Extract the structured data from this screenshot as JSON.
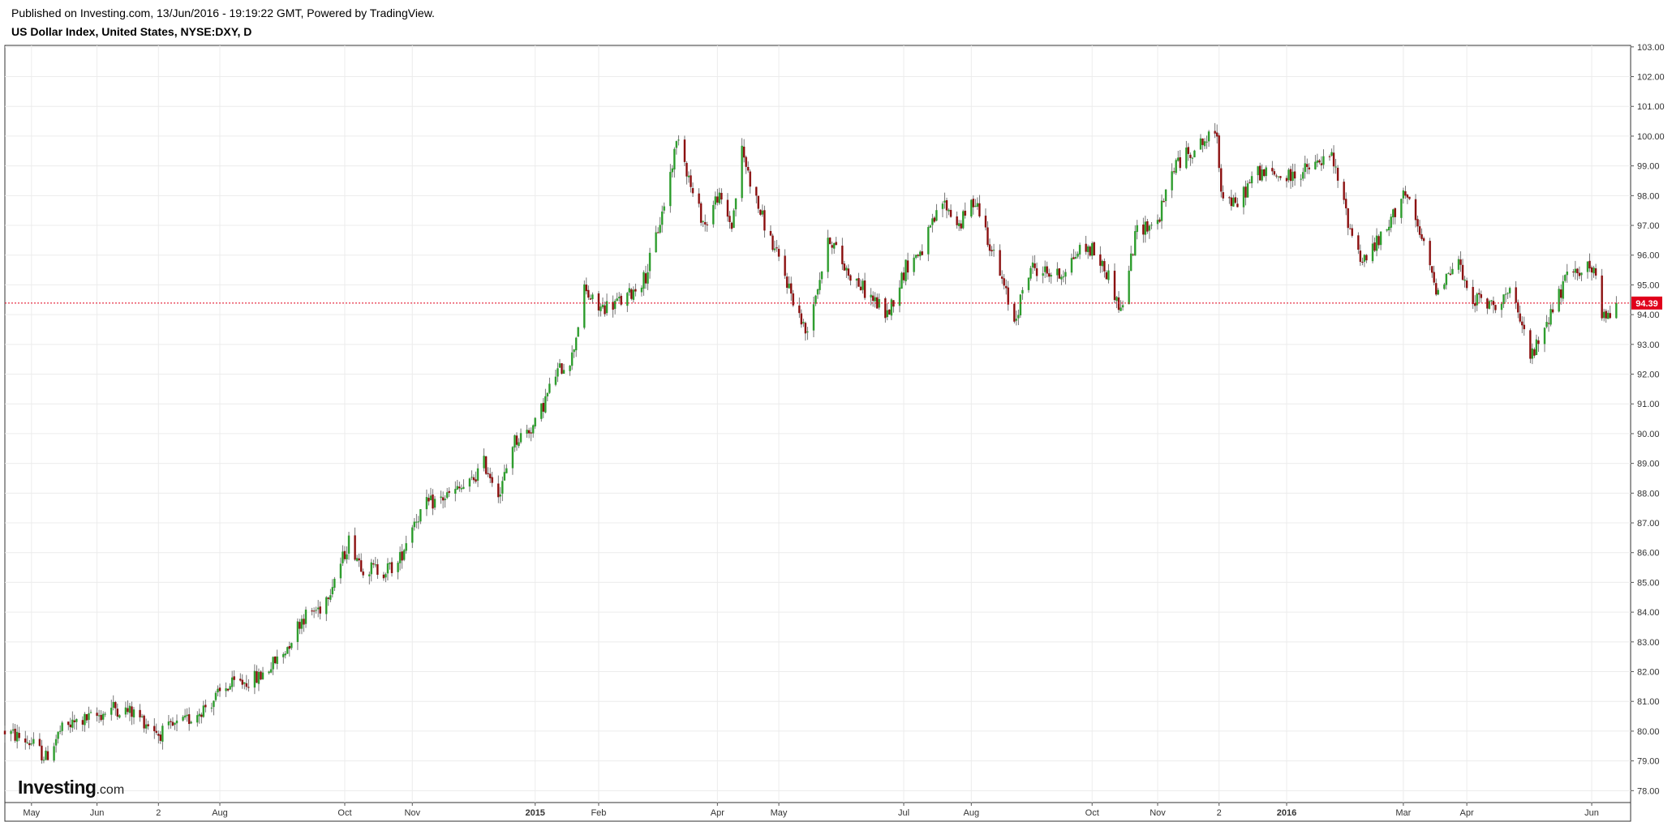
{
  "header": {
    "published": "Published on Investing.com, 13/Jun/2016 - 19:19:22 GMT, Powered by TradingView.",
    "title": "US Dollar Index, United States, NYSE:DXY, D"
  },
  "logo": {
    "brand": "Investing",
    "suffix": ".com"
  },
  "colors": {
    "up": "#2e9d2e",
    "down": "#8b1010",
    "last_price": "#e0001b",
    "grid": "#ececec"
  },
  "chart_data": {
    "type": "candlestick",
    "title": "US Dollar Index, United States, NYSE:DXY, D",
    "y_ticks": [
      "78.00",
      "79.00",
      "80.00",
      "81.00",
      "82.00",
      "83.00",
      "84.00",
      "85.00",
      "86.00",
      "87.00",
      "88.00",
      "89.00",
      "90.00",
      "91.00",
      "92.00",
      "93.00",
      "94.00",
      "95.00",
      "96.00",
      "97.00",
      "98.00",
      "99.00",
      "100.00",
      "101.00",
      "102.00",
      "103.00"
    ],
    "ylim": [
      77.6,
      103.05
    ],
    "x_ticks": [
      {
        "label": "May",
        "date": "2014-05-01",
        "bold": false
      },
      {
        "label": "Jun",
        "date": "2014-06-02",
        "bold": false
      },
      {
        "label": "2",
        "date": "2014-07-02",
        "bold": false
      },
      {
        "label": "Aug",
        "date": "2014-08-01",
        "bold": false
      },
      {
        "label": "Oct",
        "date": "2014-10-01",
        "bold": false
      },
      {
        "label": "Nov",
        "date": "2014-11-03",
        "bold": false
      },
      {
        "label": "2015",
        "date": "2015-01-02",
        "bold": true
      },
      {
        "label": "Feb",
        "date": "2015-02-02",
        "bold": false
      },
      {
        "label": "Apr",
        "date": "2015-04-01",
        "bold": false
      },
      {
        "label": "May",
        "date": "2015-05-01",
        "bold": false
      },
      {
        "label": "Jul",
        "date": "2015-07-01",
        "bold": false
      },
      {
        "label": "Aug",
        "date": "2015-08-03",
        "bold": false
      },
      {
        "label": "Oct",
        "date": "2015-10-01",
        "bold": false
      },
      {
        "label": "Nov",
        "date": "2015-11-02",
        "bold": false
      },
      {
        "label": "2",
        "date": "2015-12-02",
        "bold": false
      },
      {
        "label": "2016",
        "date": "2016-01-04",
        "bold": true
      },
      {
        "label": "Mar",
        "date": "2016-03-01",
        "bold": false
      },
      {
        "label": "Apr",
        "date": "2016-04-01",
        "bold": false
      },
      {
        "label": "Jun",
        "date": "2016-06-01",
        "bold": false
      }
    ],
    "xlim": [
      "2014-04-18",
      "2016-06-20"
    ],
    "last_price": "94.39",
    "last_value": 94.39,
    "path": [
      [
        "2014-04-18",
        80.0
      ],
      [
        "2014-05-01",
        79.6
      ],
      [
        "2014-05-08",
        79.1
      ],
      [
        "2014-05-15",
        80.0
      ],
      [
        "2014-05-23",
        80.3
      ],
      [
        "2014-06-02",
        80.5
      ],
      [
        "2014-06-10",
        80.8
      ],
      [
        "2014-06-20",
        80.6
      ],
      [
        "2014-06-30",
        80.1
      ],
      [
        "2014-07-02",
        79.9
      ],
      [
        "2014-07-15",
        80.3
      ],
      [
        "2014-07-28",
        81.0
      ],
      [
        "2014-08-05",
        81.5
      ],
      [
        "2014-08-20",
        81.8
      ],
      [
        "2014-09-01",
        82.6
      ],
      [
        "2014-09-10",
        83.8
      ],
      [
        "2014-09-20",
        84.2
      ],
      [
        "2014-09-30",
        85.8
      ],
      [
        "2014-10-03",
        86.4
      ],
      [
        "2014-10-10",
        85.5
      ],
      [
        "2014-10-20",
        85.4
      ],
      [
        "2014-10-27",
        85.6
      ],
      [
        "2014-11-03",
        87.0
      ],
      [
        "2014-11-10",
        87.6
      ],
      [
        "2014-11-20",
        87.9
      ],
      [
        "2014-12-01",
        88.3
      ],
      [
        "2014-12-08",
        89.0
      ],
      [
        "2014-12-16",
        88.0
      ],
      [
        "2014-12-22",
        89.7
      ],
      [
        "2015-01-02",
        90.3
      ],
      [
        "2015-01-12",
        92.0
      ],
      [
        "2015-01-20",
        92.6
      ],
      [
        "2015-01-26",
        94.8
      ],
      [
        "2015-02-02",
        94.2
      ],
      [
        "2015-02-15",
        94.5
      ],
      [
        "2015-02-25",
        95.3
      ],
      [
        "2015-03-05",
        97.4
      ],
      [
        "2015-03-13",
        100.1
      ],
      [
        "2015-03-20",
        98.0
      ],
      [
        "2015-03-26",
        97.0
      ],
      [
        "2015-04-01",
        98.0
      ],
      [
        "2015-04-08",
        97.0
      ],
      [
        "2015-04-13",
        99.5
      ],
      [
        "2015-04-20",
        97.8
      ],
      [
        "2015-04-27",
        96.5
      ],
      [
        "2015-05-04",
        95.3
      ],
      [
        "2015-05-14",
        93.4
      ],
      [
        "2015-05-26",
        96.6
      ],
      [
        "2015-06-02",
        95.6
      ],
      [
        "2015-06-12",
        94.8
      ],
      [
        "2015-06-23",
        94.0
      ],
      [
        "2015-07-02",
        95.6
      ],
      [
        "2015-07-10",
        96.2
      ],
      [
        "2015-07-20",
        97.8
      ],
      [
        "2015-07-28",
        97.0
      ],
      [
        "2015-08-05",
        97.9
      ],
      [
        "2015-08-12",
        96.4
      ],
      [
        "2015-08-24",
        93.8
      ],
      [
        "2015-09-01",
        95.6
      ],
      [
        "2015-09-15",
        95.3
      ],
      [
        "2015-09-25",
        96.2
      ],
      [
        "2015-10-01",
        96.2
      ],
      [
        "2015-10-09",
        95.3
      ],
      [
        "2015-10-15",
        94.1
      ],
      [
        "2015-10-23",
        96.9
      ],
      [
        "2015-11-02",
        97.1
      ],
      [
        "2015-11-10",
        99.0
      ],
      [
        "2015-11-20",
        99.6
      ],
      [
        "2015-12-01",
        100.1
      ],
      [
        "2015-12-03",
        98.2
      ],
      [
        "2015-12-10",
        97.6
      ],
      [
        "2015-12-20",
        98.8
      ],
      [
        "2016-01-04",
        98.6
      ],
      [
        "2016-01-15",
        98.9
      ],
      [
        "2016-01-26",
        99.3
      ],
      [
        "2016-02-04",
        96.9
      ],
      [
        "2016-02-10",
        95.8
      ],
      [
        "2016-02-22",
        96.8
      ],
      [
        "2016-03-01",
        98.2
      ],
      [
        "2016-03-10",
        96.5
      ],
      [
        "2016-03-17",
        94.9
      ],
      [
        "2016-03-28",
        95.8
      ],
      [
        "2016-04-01",
        94.7
      ],
      [
        "2016-04-12",
        94.3
      ],
      [
        "2016-04-22",
        94.7
      ],
      [
        "2016-05-03",
        92.6
      ],
      [
        "2016-05-10",
        93.8
      ],
      [
        "2016-05-20",
        95.2
      ],
      [
        "2016-05-27",
        95.6
      ],
      [
        "2016-06-02",
        95.5
      ],
      [
        "2016-06-06",
        93.8
      ],
      [
        "2016-06-13",
        94.39
      ]
    ]
  }
}
